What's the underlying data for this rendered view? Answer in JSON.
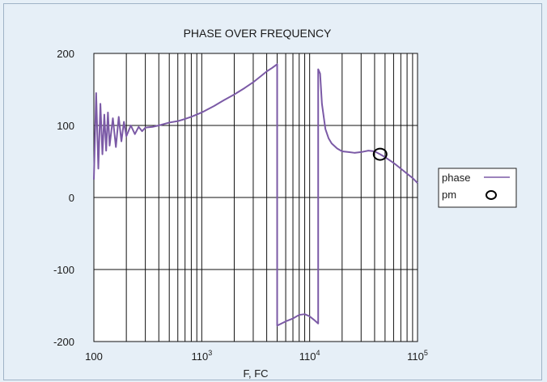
{
  "chart_data": {
    "type": "line",
    "title": "PHASE OVER FREQUENCY",
    "xlabel": "F, FC",
    "ylabel": "",
    "x_scale": "log",
    "xlim": [
      100,
      100000
    ],
    "ylim": [
      -200,
      200
    ],
    "grid": true,
    "legend_position": "right",
    "x_tick_labels": [
      {
        "base": "100",
        "exp": ""
      },
      {
        "base": "110",
        "exp": "3"
      },
      {
        "base": "110",
        "exp": "4"
      },
      {
        "base": "110",
        "exp": "5"
      }
    ],
    "y_tick_labels": [
      "200",
      "100",
      "0",
      "-100",
      "-200"
    ],
    "series": [
      {
        "name": "phase",
        "color": "#7b5aa6",
        "x": [
          100,
          105,
          110,
          115,
          120,
          125,
          130,
          135,
          140,
          150,
          160,
          170,
          180,
          190,
          200,
          220,
          240,
          260,
          280,
          300,
          350,
          400,
          500,
          600,
          700,
          800,
          1000,
          1300,
          1600,
          2000,
          2500,
          3000,
          3500,
          4000,
          4500,
          5000,
          5000,
          6000,
          7000,
          8000,
          9000,
          10000,
          11000,
          12000,
          12000,
          12500,
          13000,
          14000,
          15000,
          16000,
          18000,
          20000,
          23000,
          26000,
          30000,
          35000,
          40000,
          45000,
          50000,
          60000,
          70000,
          80000,
          90000,
          100000
        ],
        "y": [
          25,
          145,
          40,
          130,
          60,
          115,
          65,
          118,
          72,
          110,
          70,
          112,
          78,
          105,
          85,
          100,
          88,
          98,
          92,
          97,
          98,
          100,
          104,
          106,
          109,
          112,
          118,
          127,
          135,
          143,
          152,
          160,
          168,
          175,
          180,
          185,
          -178,
          -172,
          -168,
          -163,
          -162,
          -165,
          -170,
          -175,
          178,
          172,
          130,
          95,
          82,
          75,
          68,
          64,
          63,
          62,
          63,
          65,
          64,
          60,
          56,
          48,
          40,
          33,
          27,
          20
        ]
      },
      {
        "name": "pm",
        "color": "#000000",
        "marker": "circle",
        "x": [
          45000
        ],
        "y": [
          60
        ]
      }
    ]
  }
}
